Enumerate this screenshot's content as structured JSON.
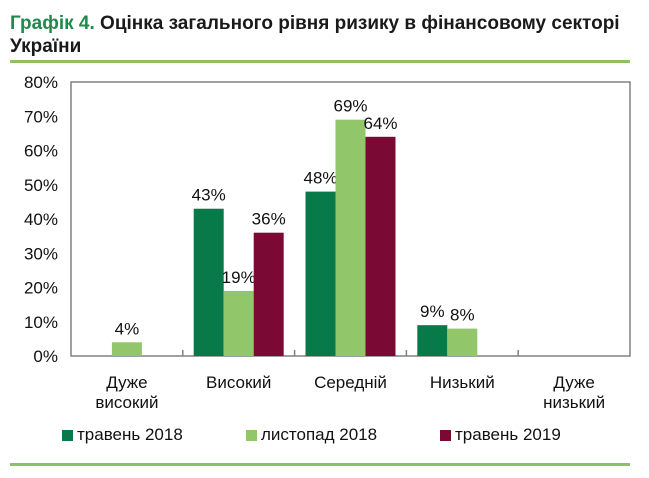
{
  "title": {
    "lead": "Графік 4.",
    "text": " Оцінка загального рівня ризику в фінансовому секторі України"
  },
  "chart_data": {
    "type": "bar",
    "categories": [
      "Дуже високий",
      "Високий",
      "Середній",
      "Низький",
      "Дуже низький"
    ],
    "category_lines": [
      [
        "Дуже",
        "високий"
      ],
      [
        "Високий"
      ],
      [
        "Середній"
      ],
      [
        "Низький"
      ],
      [
        "Дуже",
        "низький"
      ]
    ],
    "series": [
      {
        "name": "травень 2018",
        "color": "#087a4a",
        "values": [
          null,
          43,
          48,
          9,
          null
        ]
      },
      {
        "name": "листопад 2018",
        "color": "#92c66a",
        "values": [
          4,
          19,
          69,
          8,
          null
        ]
      },
      {
        "name": "травень 2019",
        "color": "#7a0a33",
        "values": [
          null,
          36,
          64,
          null,
          null
        ]
      }
    ],
    "yticks": [
      "0%",
      "10%",
      "20%",
      "30%",
      "40%",
      "50%",
      "60%",
      "70%",
      "80%"
    ],
    "ylim": [
      0,
      80
    ],
    "legend": "bottom",
    "grid": false
  }
}
